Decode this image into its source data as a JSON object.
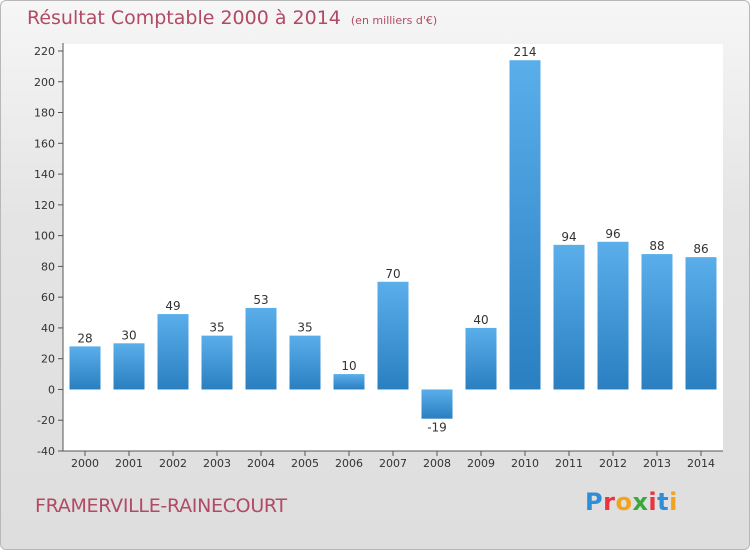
{
  "title": "Résultat Comptable 2000 à 2014",
  "unit_label": "(en milliers d'€)",
  "city": "FRAMERVILLE-RAINECOURT",
  "brand": {
    "letters": [
      "P",
      "r",
      "o",
      "x",
      "i",
      "t",
      "i"
    ],
    "colors": [
      "#2f8fd6",
      "#e8343f",
      "#f2a21b",
      "#3aa83a",
      "#e8343f",
      "#2f8fd6",
      "#f2a21b"
    ]
  },
  "colors": {
    "bar_top": "#5aaeea",
    "bar_bottom": "#2a7fc1",
    "title": "#b14a64"
  },
  "chart_data": {
    "type": "bar",
    "title": "Résultat Comptable 2000 à 2014",
    "categories": [
      "2000",
      "2001",
      "2002",
      "2003",
      "2004",
      "2005",
      "2006",
      "2007",
      "2008",
      "2009",
      "2010",
      "2011",
      "2012",
      "2013",
      "2014"
    ],
    "values": [
      28,
      30,
      49,
      35,
      53,
      35,
      10,
      70,
      -19,
      40,
      214,
      94,
      96,
      88,
      86
    ],
    "value_labels": [
      "28",
      "30",
      "49",
      "35",
      "53",
      "35",
      "10",
      "70",
      "-19",
      "40",
      "214",
      "94",
      "96",
      "88",
      "86"
    ],
    "ylim": [
      -40,
      220
    ],
    "yticks": [
      -40,
      -20,
      0,
      20,
      40,
      60,
      80,
      100,
      120,
      140,
      160,
      180,
      200,
      220
    ],
    "ytick_labels": [
      "-40",
      "-20",
      "0",
      "20",
      "40",
      "60",
      "80",
      "100",
      "120",
      "140",
      "160",
      "180",
      "200",
      "220"
    ],
    "grid": false
  }
}
